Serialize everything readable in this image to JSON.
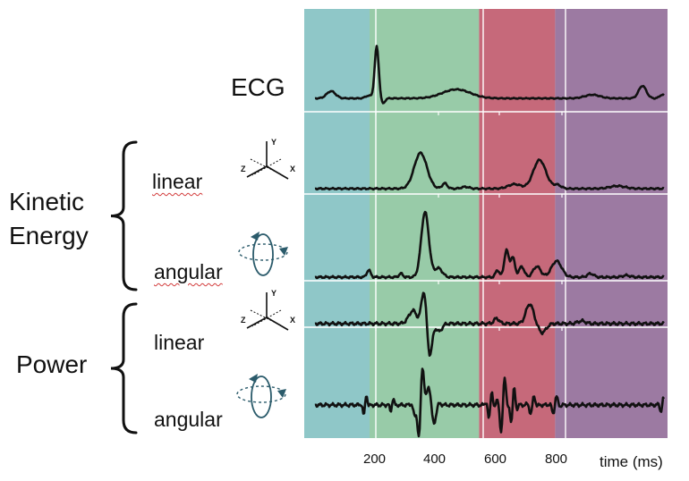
{
  "labels": {
    "ecg": "ECG",
    "kinetic_line1": "Kinetic",
    "kinetic_line2": "Energy",
    "power": "Power",
    "ke_linear": "linear",
    "ke_angular": "angular",
    "p_linear": "linear",
    "p_angular": "angular",
    "x_axis": "time (ms)"
  },
  "axis_icon": {
    "y": "Y",
    "x": "X",
    "z": "Z"
  },
  "x_ticks": [
    "200",
    "400",
    "600",
    "800"
  ],
  "phases": [
    {
      "from": 0,
      "to": 200,
      "color": "#8fc7c8"
    },
    {
      "from": 200,
      "to": 560,
      "color": "#98cba8"
    },
    {
      "from": 560,
      "to": 810,
      "color": "#c6697a"
    },
    {
      "from": 810,
      "to": 1100,
      "color": "#9c7aa2"
    }
  ],
  "colors": {
    "trace": "#111111",
    "icon": "#2b5b6b"
  }
}
